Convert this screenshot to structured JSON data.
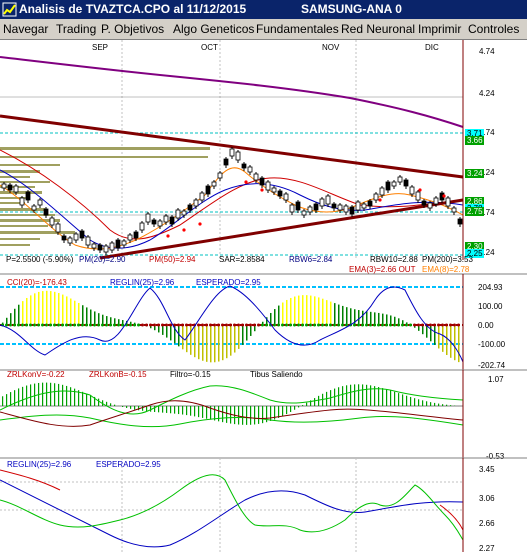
{
  "window": {
    "title": "Analisis de TVAZTCA.CPO al 11/12/2015",
    "subtitle": "SAMSUNG-ANA 0",
    "colors": {
      "titlebar": "#0a246a",
      "menubar": "#d4d0c8"
    }
  },
  "menu": [
    "Navegar",
    "Trading",
    "P. Objetivos",
    "Algo Geneticos",
    "Fundamentales",
    "Red Neuronal",
    "Imprimir",
    "Controles"
  ],
  "panels": {
    "price": {
      "months": [
        "SEP",
        "OCT",
        "NOV",
        "DIC"
      ],
      "y_ticks": [
        "4.74",
        "4.24",
        "3.74",
        "3.24",
        "2.74",
        "2.24"
      ],
      "level_badges": [
        {
          "text": "3.71",
          "bg": "#00ffff"
        },
        {
          "text": "3.66",
          "bg": "#00a000"
        },
        {
          "text": "3.24",
          "bg": "#00a000"
        },
        {
          "text": "2.86",
          "bg": "#00a000"
        },
        {
          "text": "2.78",
          "bg": "#00ffff"
        },
        {
          "text": "2.75",
          "bg": "#00a000"
        },
        {
          "text": "2.30",
          "bg": "#00a000"
        },
        {
          "text": "2.25",
          "bg": "#00ffff"
        }
      ],
      "labels": {
        "p": "P=2.5500 (-5.90%)",
        "pm20": "PM(20)=2.90",
        "pm50": "PM(50)=2.94",
        "sar": "SAR=2.8584",
        "rbw6": "RBW6=2.84",
        "rbw10": "RBW10=2.88",
        "pm200": "PM(200)=3.53",
        "ema3": "EMA(3)=2.66 OUT",
        "ema8": "EMA(8)=2.78"
      }
    },
    "cci": {
      "labels": {
        "cci": "CCI(20)=-176.43",
        "reglin": "REGLIN(25)=2.96",
        "esperado": "ESPERADO=2.95"
      },
      "y_ticks": [
        "204.93",
        "100.00",
        "0.00",
        "-100.00",
        "-202.74"
      ]
    },
    "zrl": {
      "labels": {
        "v": "ZRLKonV=-0.22",
        "b": "ZRLKonB=-0.15",
        "filtro": "Filtro=-0.15",
        "tibus": "Tibus Saliendo"
      },
      "y_ticks": [
        "1.07",
        "-0.53"
      ]
    },
    "reg": {
      "labels": {
        "reglin": "REGLIN(25)=2.96",
        "esperado": "ESPERADO=2.95"
      },
      "y_ticks": [
        "3.45",
        "3.06",
        "2.66",
        "2.27"
      ]
    }
  }
}
